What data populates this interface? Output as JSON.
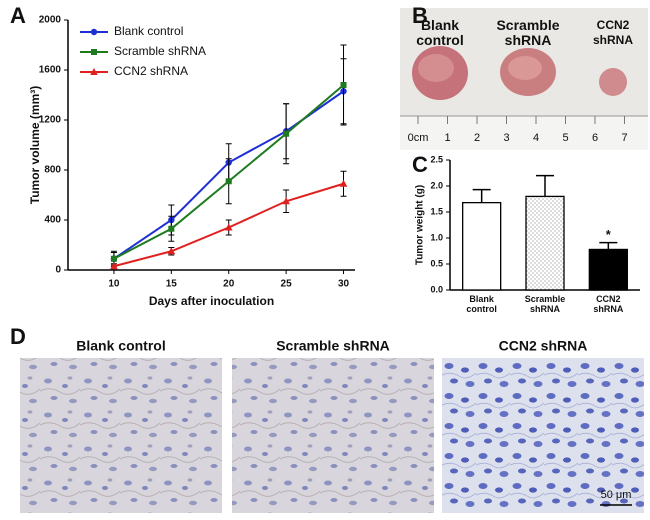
{
  "chart_data": [
    {
      "type": "line",
      "panel": "A",
      "x_label": "Days after inoculation",
      "y_label": "Tumor volume (mm³)",
      "x": [
        10,
        15,
        20,
        25,
        30
      ],
      "xlim": [
        6,
        31
      ],
      "xticks": [
        10,
        15,
        20,
        25,
        30
      ],
      "ylim": [
        0,
        2000
      ],
      "yticks": [
        0,
        400,
        800,
        1200,
        1600,
        2000
      ],
      "legend": "top-left",
      "series": [
        {
          "name": "Blank control",
          "color": "#1f2fd6",
          "marker": "circle",
          "values": [
            90,
            400,
            860,
            1110,
            1430
          ],
          "errors": [
            50,
            120,
            150,
            220,
            260
          ]
        },
        {
          "name": "Scramble shRNA",
          "color": "#1e7a1e",
          "marker": "square",
          "values": [
            90,
            330,
            710,
            1090,
            1480
          ],
          "errors": [
            60,
            100,
            180,
            240,
            320
          ]
        },
        {
          "name": "CCN2 shRNA",
          "color": "#e0201f",
          "marker": "triangle",
          "values": [
            30,
            150,
            340,
            550,
            690
          ],
          "errors": [
            20,
            30,
            60,
            90,
            100
          ]
        }
      ]
    },
    {
      "type": "bar",
      "panel": "C",
      "y_label": "Tumor weight (g)",
      "categories": [
        "Blank control",
        "Scramble shRNA",
        "CCN2 shRNA"
      ],
      "values": [
        1.68,
        1.8,
        0.78
      ],
      "errors": [
        0.25,
        0.4,
        0.13
      ],
      "fills": [
        "#ffffff",
        "dots",
        "#000000"
      ],
      "annotations": [
        null,
        null,
        "*"
      ],
      "ylim": [
        0,
        2.5
      ],
      "yticks": [
        {
          "value": 0,
          "label": "0.0"
        },
        0.5,
        {
          "value": 1,
          "label": "1.0"
        },
        1.5,
        {
          "value": 2,
          "label": "2.0"
        },
        2.5
      ]
    }
  ],
  "photo": {
    "panel": "B",
    "labels": [
      "Blank control",
      "Scramble shRNA",
      "CCN2 shRNA"
    ],
    "ruler": [
      "0cm",
      "1",
      "2",
      "3",
      "4",
      "5",
      "6",
      "7"
    ]
  },
  "micrographs": {
    "panel": "D",
    "titles": [
      "Blank control",
      "Scramble shRNA",
      "CCN2 shRNA"
    ],
    "scale_bar": "50 μm"
  }
}
